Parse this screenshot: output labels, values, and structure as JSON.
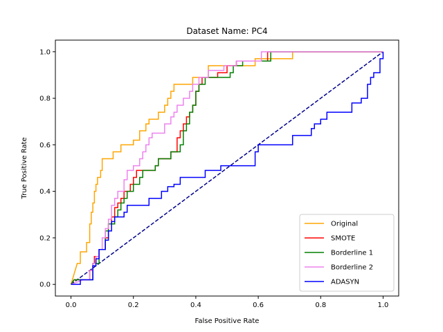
{
  "chart_data": {
    "type": "line",
    "title": "Dataset Name: PC4",
    "xlabel": "False Positive Rate",
    "ylabel": "True Positive Rate",
    "xlim": [
      -0.05,
      1.05
    ],
    "ylim": [
      -0.05,
      1.05
    ],
    "xticks": [
      "0.0",
      "0.2",
      "0.4",
      "0.6",
      "0.8",
      "1.0"
    ],
    "yticks": [
      "0.0",
      "0.2",
      "0.4",
      "0.6",
      "0.8",
      "1.0"
    ],
    "grid": false,
    "legend_position": "lower-right",
    "diagonal": {
      "color": "#00008b",
      "style": "dashed",
      "points": [
        [
          0,
          0
        ],
        [
          1,
          1
        ]
      ]
    },
    "series": [
      {
        "name": "Original",
        "color": "#ffa500",
        "points": [
          [
            0,
            0
          ],
          [
            0.02,
            0.09
          ],
          [
            0.03,
            0.09
          ],
          [
            0.03,
            0.14
          ],
          [
            0.05,
            0.14
          ],
          [
            0.05,
            0.18
          ],
          [
            0.06,
            0.18
          ],
          [
            0.06,
            0.26
          ],
          [
            0.065,
            0.26
          ],
          [
            0.065,
            0.31
          ],
          [
            0.07,
            0.31
          ],
          [
            0.07,
            0.35
          ],
          [
            0.075,
            0.35
          ],
          [
            0.075,
            0.4
          ],
          [
            0.08,
            0.4
          ],
          [
            0.08,
            0.43
          ],
          [
            0.085,
            0.43
          ],
          [
            0.085,
            0.46
          ],
          [
            0.095,
            0.46
          ],
          [
            0.095,
            0.49
          ],
          [
            0.1,
            0.49
          ],
          [
            0.1,
            0.54
          ],
          [
            0.135,
            0.54
          ],
          [
            0.135,
            0.57
          ],
          [
            0.16,
            0.57
          ],
          [
            0.16,
            0.6
          ],
          [
            0.2,
            0.6
          ],
          [
            0.2,
            0.62
          ],
          [
            0.22,
            0.62
          ],
          [
            0.22,
            0.66
          ],
          [
            0.24,
            0.66
          ],
          [
            0.24,
            0.69
          ],
          [
            0.25,
            0.69
          ],
          [
            0.25,
            0.71
          ],
          [
            0.28,
            0.71
          ],
          [
            0.28,
            0.74
          ],
          [
            0.3,
            0.74
          ],
          [
            0.3,
            0.77
          ],
          [
            0.31,
            0.77
          ],
          [
            0.31,
            0.8
          ],
          [
            0.32,
            0.8
          ],
          [
            0.32,
            0.83
          ],
          [
            0.33,
            0.83
          ],
          [
            0.33,
            0.86
          ],
          [
            0.39,
            0.86
          ],
          [
            0.39,
            0.89
          ],
          [
            0.44,
            0.89
          ],
          [
            0.44,
            0.94
          ],
          [
            0.59,
            0.94
          ],
          [
            0.59,
            0.97
          ],
          [
            0.71,
            0.97
          ],
          [
            0.71,
            1.0
          ],
          [
            1.0,
            1.0
          ]
        ]
      },
      {
        "name": "SMOTE",
        "color": "#ff0000",
        "points": [
          [
            0,
            0
          ],
          [
            0.01,
            0.02
          ],
          [
            0.06,
            0.02
          ],
          [
            0.06,
            0.06
          ],
          [
            0.07,
            0.06
          ],
          [
            0.07,
            0.09
          ],
          [
            0.075,
            0.09
          ],
          [
            0.075,
            0.12
          ],
          [
            0.09,
            0.12
          ],
          [
            0.09,
            0.15
          ],
          [
            0.11,
            0.15
          ],
          [
            0.11,
            0.2
          ],
          [
            0.12,
            0.2
          ],
          [
            0.12,
            0.26
          ],
          [
            0.13,
            0.26
          ],
          [
            0.13,
            0.29
          ],
          [
            0.14,
            0.29
          ],
          [
            0.14,
            0.33
          ],
          [
            0.15,
            0.33
          ],
          [
            0.15,
            0.35
          ],
          [
            0.16,
            0.35
          ],
          [
            0.16,
            0.37
          ],
          [
            0.17,
            0.37
          ],
          [
            0.17,
            0.4
          ],
          [
            0.19,
            0.4
          ],
          [
            0.19,
            0.43
          ],
          [
            0.2,
            0.43
          ],
          [
            0.2,
            0.46
          ],
          [
            0.21,
            0.46
          ],
          [
            0.21,
            0.49
          ],
          [
            0.27,
            0.49
          ],
          [
            0.27,
            0.51
          ],
          [
            0.28,
            0.51
          ],
          [
            0.28,
            0.54
          ],
          [
            0.32,
            0.54
          ],
          [
            0.32,
            0.57
          ],
          [
            0.34,
            0.57
          ],
          [
            0.34,
            0.63
          ],
          [
            0.35,
            0.63
          ],
          [
            0.35,
            0.66
          ],
          [
            0.36,
            0.66
          ],
          [
            0.36,
            0.69
          ],
          [
            0.37,
            0.69
          ],
          [
            0.37,
            0.72
          ],
          [
            0.38,
            0.72
          ],
          [
            0.38,
            0.74
          ],
          [
            0.39,
            0.74
          ],
          [
            0.39,
            0.77
          ],
          [
            0.4,
            0.77
          ],
          [
            0.4,
            0.83
          ],
          [
            0.41,
            0.83
          ],
          [
            0.41,
            0.86
          ],
          [
            0.42,
            0.86
          ],
          [
            0.42,
            0.89
          ],
          [
            0.47,
            0.89
          ],
          [
            0.47,
            0.91
          ],
          [
            0.5,
            0.91
          ],
          [
            0.5,
            0.94
          ],
          [
            0.53,
            0.94
          ],
          [
            0.53,
            0.96
          ],
          [
            0.63,
            0.96
          ],
          [
            0.63,
            1.0
          ],
          [
            1.0,
            1.0
          ]
        ]
      },
      {
        "name": "Borderline 1",
        "color": "#008000",
        "points": [
          [
            0,
            0
          ],
          [
            0.01,
            0.02
          ],
          [
            0.07,
            0.02
          ],
          [
            0.07,
            0.09
          ],
          [
            0.09,
            0.09
          ],
          [
            0.09,
            0.15
          ],
          [
            0.11,
            0.15
          ],
          [
            0.11,
            0.23
          ],
          [
            0.12,
            0.23
          ],
          [
            0.12,
            0.26
          ],
          [
            0.14,
            0.26
          ],
          [
            0.14,
            0.29
          ],
          [
            0.15,
            0.29
          ],
          [
            0.15,
            0.32
          ],
          [
            0.16,
            0.32
          ],
          [
            0.16,
            0.35
          ],
          [
            0.17,
            0.35
          ],
          [
            0.17,
            0.37
          ],
          [
            0.18,
            0.37
          ],
          [
            0.18,
            0.4
          ],
          [
            0.2,
            0.4
          ],
          [
            0.2,
            0.43
          ],
          [
            0.22,
            0.43
          ],
          [
            0.22,
            0.46
          ],
          [
            0.23,
            0.46
          ],
          [
            0.23,
            0.49
          ],
          [
            0.27,
            0.49
          ],
          [
            0.27,
            0.51
          ],
          [
            0.28,
            0.51
          ],
          [
            0.28,
            0.54
          ],
          [
            0.32,
            0.54
          ],
          [
            0.32,
            0.57
          ],
          [
            0.35,
            0.57
          ],
          [
            0.35,
            0.6
          ],
          [
            0.36,
            0.6
          ],
          [
            0.36,
            0.66
          ],
          [
            0.37,
            0.66
          ],
          [
            0.37,
            0.69
          ],
          [
            0.38,
            0.69
          ],
          [
            0.38,
            0.74
          ],
          [
            0.39,
            0.74
          ],
          [
            0.39,
            0.77
          ],
          [
            0.4,
            0.77
          ],
          [
            0.4,
            0.83
          ],
          [
            0.41,
            0.83
          ],
          [
            0.41,
            0.86
          ],
          [
            0.43,
            0.86
          ],
          [
            0.43,
            0.89
          ],
          [
            0.51,
            0.89
          ],
          [
            0.51,
            0.91
          ],
          [
            0.52,
            0.91
          ],
          [
            0.52,
            0.94
          ],
          [
            0.55,
            0.94
          ],
          [
            0.55,
            0.96
          ],
          [
            0.64,
            0.96
          ],
          [
            0.64,
            1.0
          ],
          [
            1.0,
            1.0
          ]
        ]
      },
      {
        "name": "Borderline 2",
        "color": "#ee82ee",
        "points": [
          [
            0,
            0
          ],
          [
            0.04,
            0.02
          ],
          [
            0.06,
            0.02
          ],
          [
            0.06,
            0.06
          ],
          [
            0.07,
            0.06
          ],
          [
            0.07,
            0.09
          ],
          [
            0.08,
            0.09
          ],
          [
            0.08,
            0.12
          ],
          [
            0.09,
            0.12
          ],
          [
            0.09,
            0.15
          ],
          [
            0.1,
            0.15
          ],
          [
            0.1,
            0.2
          ],
          [
            0.11,
            0.2
          ],
          [
            0.11,
            0.24
          ],
          [
            0.12,
            0.24
          ],
          [
            0.12,
            0.28
          ],
          [
            0.13,
            0.28
          ],
          [
            0.13,
            0.34
          ],
          [
            0.14,
            0.34
          ],
          [
            0.14,
            0.37
          ],
          [
            0.15,
            0.37
          ],
          [
            0.15,
            0.4
          ],
          [
            0.17,
            0.4
          ],
          [
            0.17,
            0.45
          ],
          [
            0.18,
            0.45
          ],
          [
            0.18,
            0.49
          ],
          [
            0.2,
            0.49
          ],
          [
            0.2,
            0.51
          ],
          [
            0.22,
            0.51
          ],
          [
            0.22,
            0.54
          ],
          [
            0.23,
            0.54
          ],
          [
            0.23,
            0.57
          ],
          [
            0.24,
            0.57
          ],
          [
            0.24,
            0.6
          ],
          [
            0.25,
            0.6
          ],
          [
            0.25,
            0.63
          ],
          [
            0.26,
            0.63
          ],
          [
            0.26,
            0.65
          ],
          [
            0.3,
            0.65
          ],
          [
            0.3,
            0.69
          ],
          [
            0.32,
            0.69
          ],
          [
            0.32,
            0.72
          ],
          [
            0.33,
            0.72
          ],
          [
            0.33,
            0.74
          ],
          [
            0.34,
            0.74
          ],
          [
            0.34,
            0.77
          ],
          [
            0.36,
            0.77
          ],
          [
            0.36,
            0.8
          ],
          [
            0.38,
            0.8
          ],
          [
            0.38,
            0.83
          ],
          [
            0.39,
            0.83
          ],
          [
            0.39,
            0.86
          ],
          [
            0.41,
            0.86
          ],
          [
            0.41,
            0.89
          ],
          [
            0.44,
            0.89
          ],
          [
            0.44,
            0.92
          ],
          [
            0.49,
            0.92
          ],
          [
            0.49,
            0.94
          ],
          [
            0.53,
            0.94
          ],
          [
            0.53,
            0.96
          ],
          [
            0.61,
            0.96
          ],
          [
            0.61,
            1.0
          ],
          [
            1.0,
            1.0
          ]
        ]
      },
      {
        "name": "ADASYN",
        "color": "#0000ff",
        "points": [
          [
            0,
            0
          ],
          [
            0.03,
            0.0
          ],
          [
            0.03,
            0.02
          ],
          [
            0.07,
            0.02
          ],
          [
            0.07,
            0.08
          ],
          [
            0.08,
            0.08
          ],
          [
            0.08,
            0.11
          ],
          [
            0.09,
            0.11
          ],
          [
            0.09,
            0.15
          ],
          [
            0.11,
            0.15
          ],
          [
            0.11,
            0.19
          ],
          [
            0.12,
            0.19
          ],
          [
            0.12,
            0.23
          ],
          [
            0.13,
            0.23
          ],
          [
            0.13,
            0.27
          ],
          [
            0.14,
            0.27
          ],
          [
            0.14,
            0.29
          ],
          [
            0.17,
            0.29
          ],
          [
            0.17,
            0.31
          ],
          [
            0.18,
            0.31
          ],
          [
            0.18,
            0.34
          ],
          [
            0.25,
            0.34
          ],
          [
            0.25,
            0.37
          ],
          [
            0.29,
            0.37
          ],
          [
            0.29,
            0.4
          ],
          [
            0.31,
            0.4
          ],
          [
            0.31,
            0.42
          ],
          [
            0.33,
            0.42
          ],
          [
            0.33,
            0.43
          ],
          [
            0.35,
            0.43
          ],
          [
            0.35,
            0.46
          ],
          [
            0.43,
            0.46
          ],
          [
            0.43,
            0.49
          ],
          [
            0.48,
            0.49
          ],
          [
            0.48,
            0.51
          ],
          [
            0.59,
            0.51
          ],
          [
            0.59,
            0.57
          ],
          [
            0.6,
            0.57
          ],
          [
            0.6,
            0.6
          ],
          [
            0.71,
            0.6
          ],
          [
            0.71,
            0.64
          ],
          [
            0.77,
            0.64
          ],
          [
            0.77,
            0.67
          ],
          [
            0.78,
            0.67
          ],
          [
            0.78,
            0.69
          ],
          [
            0.8,
            0.69
          ],
          [
            0.8,
            0.71
          ],
          [
            0.82,
            0.71
          ],
          [
            0.82,
            0.74
          ],
          [
            0.9,
            0.74
          ],
          [
            0.9,
            0.78
          ],
          [
            0.93,
            0.78
          ],
          [
            0.93,
            0.8
          ],
          [
            0.95,
            0.8
          ],
          [
            0.95,
            0.86
          ],
          [
            0.96,
            0.86
          ],
          [
            0.96,
            0.89
          ],
          [
            0.97,
            0.89
          ],
          [
            0.97,
            0.91
          ],
          [
            0.99,
            0.91
          ],
          [
            0.99,
            0.97
          ],
          [
            1.0,
            0.97
          ],
          [
            1.0,
            1.0
          ]
        ]
      }
    ]
  }
}
